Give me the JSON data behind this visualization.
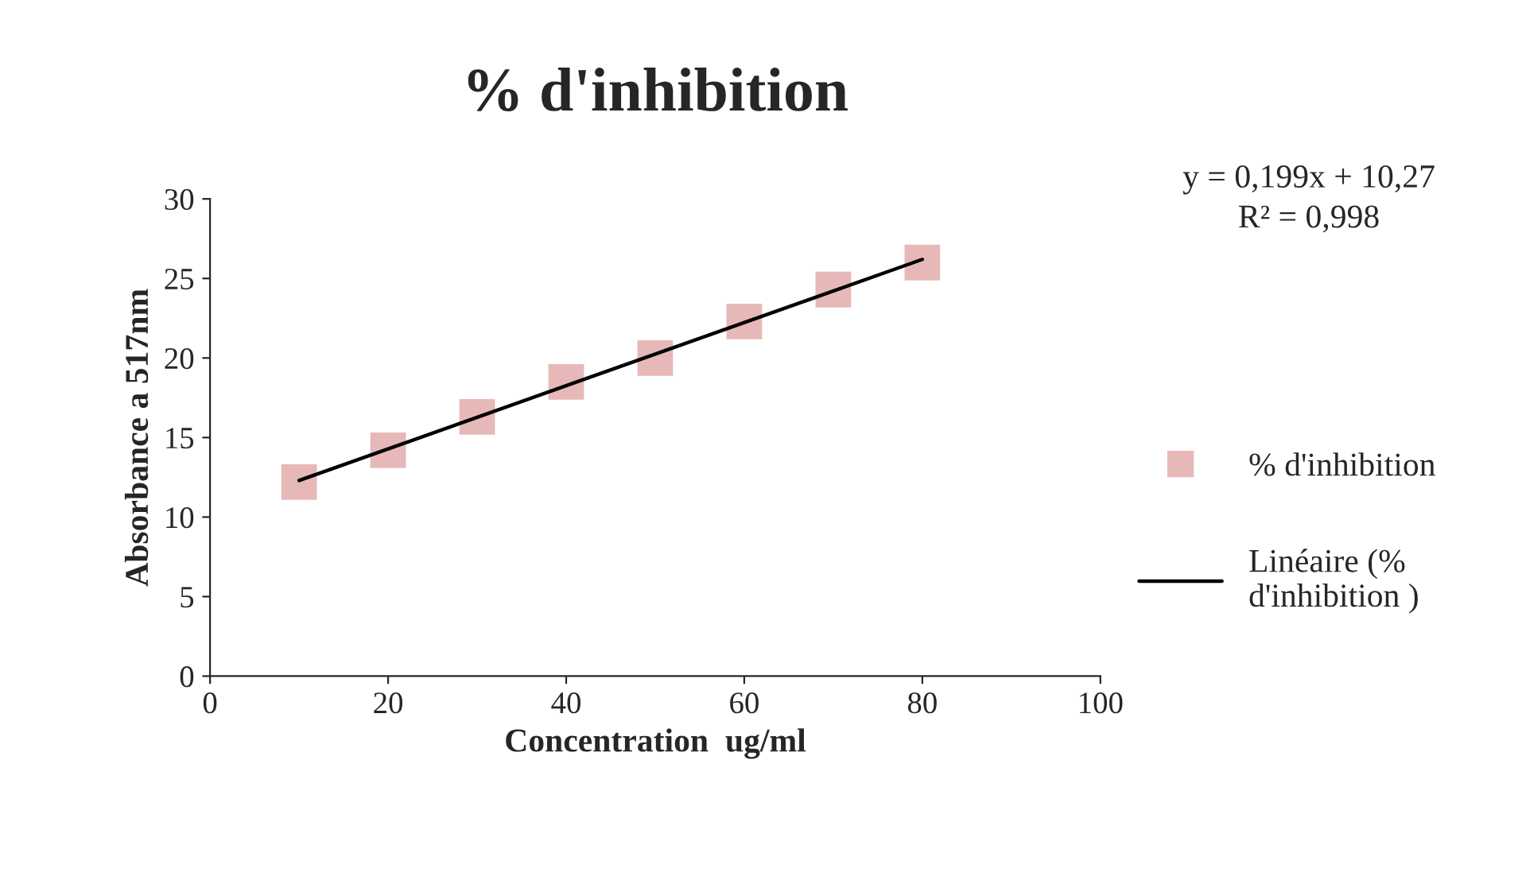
{
  "chart_data": {
    "type": "scatter",
    "title": "% d'inhibition",
    "xlabel": "Concentration  ug/ml",
    "ylabel": "Absorbance a 517nm",
    "x": [
      10,
      20,
      30,
      40,
      50,
      60,
      70,
      80
    ],
    "series": [
      {
        "name": "% d'inhibition",
        "color": "#e6b9b8",
        "marker": "square",
        "values": [
          12.2,
          14.2,
          16.3,
          18.5,
          20.0,
          22.3,
          24.3,
          26.0
        ]
      },
      {
        "name": "Linéaire (% d'inhibition )",
        "type": "line",
        "color": "#000000",
        "line_style": "solid",
        "marker": "none",
        "x": [
          10,
          80
        ],
        "values": [
          12.3,
          26.2
        ]
      }
    ],
    "xlim": [
      0,
      100
    ],
    "xticks": [
      0,
      20,
      40,
      60,
      80,
      100
    ],
    "ylim": [
      0,
      30
    ],
    "yticks": [
      0,
      5,
      10,
      15,
      20,
      25,
      30
    ],
    "grid": false,
    "legend": "right",
    "annotations": [
      "y = 0,199x + 10,27",
      "R² = 0,998"
    ]
  }
}
